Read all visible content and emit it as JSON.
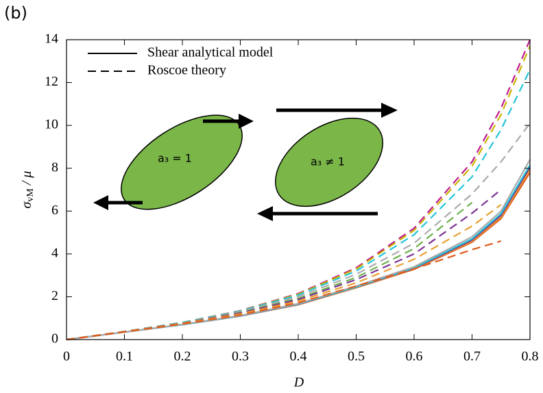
{
  "chart_data": {
    "type": "line",
    "panel_label": "(b)",
    "x_label": "D",
    "y_label": {
      "symbol": "σ",
      "subscript": "vM",
      "rest": " / μ"
    },
    "annotations": [
      "a₃ = 1",
      "a₃ ≠ 1"
    ],
    "legend": [
      {
        "label": "Shear analytical model",
        "dash": "solid"
      },
      {
        "label": "Roscoe theory",
        "dash": "dashed"
      }
    ],
    "legend_loc": "upper left",
    "x": [
      0,
      0.1,
      0.2,
      0.3,
      0.4,
      0.5,
      0.6,
      0.7,
      0.75,
      0.8
    ],
    "xlim": [
      0,
      0.8
    ],
    "ylim": [
      0,
      14
    ],
    "xticks": [
      0,
      0.1,
      0.2,
      0.3,
      0.4,
      0.5,
      0.6,
      0.7,
      0.8
    ],
    "yticks": [
      0,
      2,
      4,
      6,
      8,
      10,
      12,
      14
    ],
    "series": [
      {
        "color": "#e05a1a",
        "dash": "solid",
        "values": [
          0,
          0.35,
          0.7,
          1.1,
          1.63,
          2.42,
          3.28,
          4.55,
          5.65,
          7.8
        ]
      },
      {
        "color": "#e8a030",
        "dash": "solid",
        "values": [
          0,
          0.35,
          0.7,
          1.1,
          1.64,
          2.43,
          3.3,
          4.6,
          5.72,
          7.95
        ]
      },
      {
        "color": "#7b3294",
        "dash": "solid",
        "values": [
          0,
          0.35,
          0.7,
          1.1,
          1.65,
          2.45,
          3.32,
          4.65,
          5.8,
          8.05
        ]
      },
      {
        "color": "#22c4d8",
        "dash": "solid",
        "values": [
          0,
          0.35,
          0.7,
          1.11,
          1.66,
          2.46,
          3.35,
          4.7,
          5.88,
          8.15
        ]
      },
      {
        "color": "#aaaaaa",
        "dash": "solid",
        "values": [
          0,
          0.35,
          0.71,
          1.12,
          1.68,
          2.5,
          3.4,
          4.8,
          6.0,
          8.4
        ]
      },
      {
        "color": "#c0188c",
        "dash": "dashed",
        "values": [
          0,
          0.38,
          0.8,
          1.35,
          2.15,
          3.35,
          5.2,
          8.3,
          10.8,
          14
        ]
      },
      {
        "color": "#c8b400",
        "dash": "dashed",
        "values": [
          0,
          0.38,
          0.8,
          1.34,
          2.12,
          3.3,
          5.1,
          8.1,
          10.5,
          13.7
        ]
      },
      {
        "color": "#22c4d8",
        "dash": "dashed",
        "values": [
          0,
          0.38,
          0.8,
          1.33,
          2.08,
          3.2,
          4.9,
          7.6,
          9.8,
          12.6
        ]
      },
      {
        "color": "#aaaaaa",
        "dash": "dashed",
        "values": [
          0,
          0.38,
          0.78,
          1.3,
          2.0,
          3.05,
          4.5,
          6.8,
          8.3,
          10.1
        ]
      },
      {
        "color": "#6ab04c",
        "dash": "dashed",
        "values": [
          0,
          0.37,
          0.77,
          1.26,
          1.92,
          2.9,
          4.25,
          6.4,
          null,
          null
        ]
      },
      {
        "color": "#7b3294",
        "dash": "dashed",
        "values": [
          0,
          0.37,
          0.76,
          1.24,
          1.87,
          2.8,
          4.0,
          5.9,
          7.0,
          null
        ]
      },
      {
        "color": "#e8a030",
        "dash": "dashed",
        "values": [
          0,
          0.37,
          0.75,
          1.2,
          1.8,
          2.65,
          3.75,
          5.3,
          6.3,
          null
        ]
      },
      {
        "color": "#e05a1a",
        "dash": "dashed",
        "values": [
          0,
          0.36,
          0.73,
          1.15,
          1.72,
          2.5,
          3.3,
          4.2,
          4.6,
          null
        ]
      }
    ]
  }
}
